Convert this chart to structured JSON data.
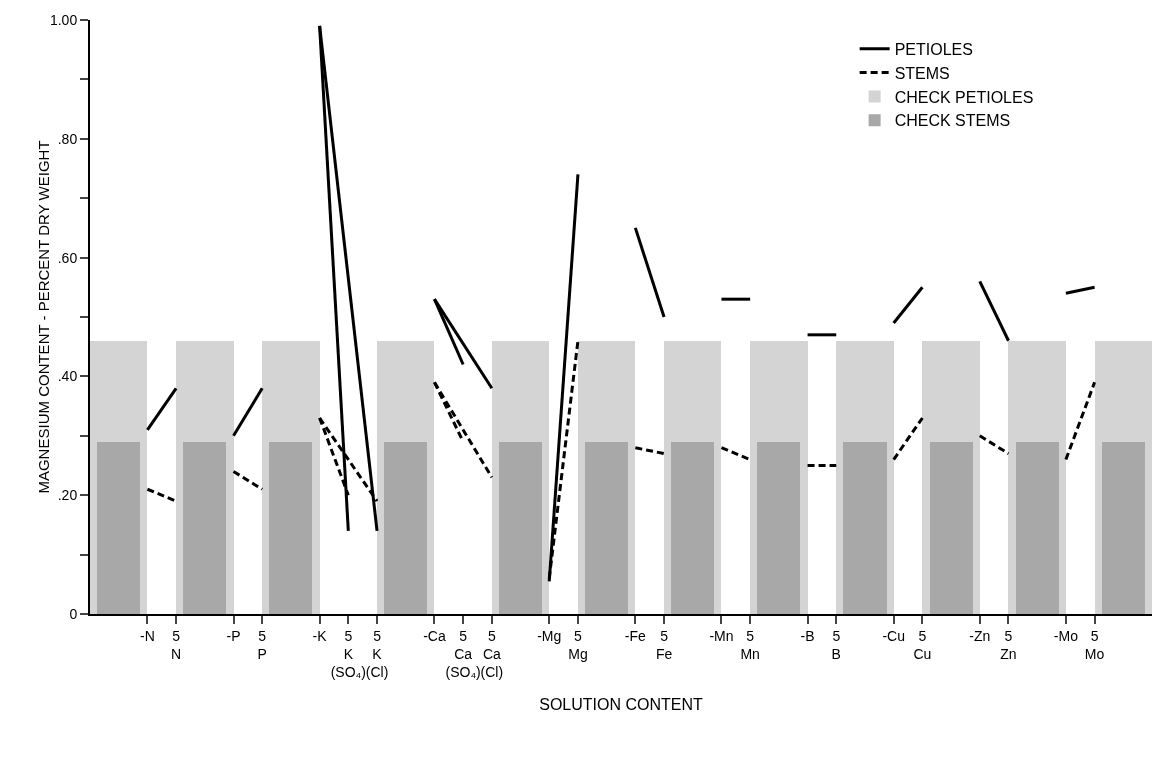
{
  "chart_data": {
    "type": "line",
    "xlabel": "SOLUTION CONTENT",
    "ylabel": "MAGNESIUM CONTENT - PERCENT DRY WEIGHT",
    "categories": [
      null,
      "-N",
      "5\nN",
      null,
      "-P",
      "5\nP",
      null,
      "-K",
      "5\nK\n(SO₄)",
      "5\nK\n(Cl)",
      null,
      "-Ca",
      "5\nCa\n(SO₄)",
      "5\nCa\n(Cl)",
      null,
      "-Mg",
      "5\nMg",
      null,
      "-Fe",
      "5\nFe",
      null,
      "-Mn",
      "5\nMn",
      null,
      "-B",
      "5\nB",
      null,
      "-Cu",
      "5\nCu",
      null,
      "-Zn",
      "5\nZn",
      null,
      "-Mo",
      "5\nMo",
      null
    ],
    "ylim": [
      0,
      1
    ],
    "yticks": [
      {
        "value": 0,
        "label": "0"
      },
      {
        "value": 0.1,
        "label": null
      },
      {
        "value": 0.2,
        "label": ".20"
      },
      {
        "value": 0.3,
        "label": null
      },
      {
        "value": 0.4,
        "label": ".40"
      },
      {
        "value": 0.5,
        "label": null
      },
      {
        "value": 0.6,
        "label": ".60"
      },
      {
        "value": 0.7,
        "label": null
      },
      {
        "value": 0.8,
        "label": ".80"
      },
      {
        "value": 0.9,
        "label": null
      },
      {
        "value": 1,
        "label": "1.00"
      }
    ],
    "legend": "top right",
    "marker": "none",
    "series": [
      {
        "name": "CHECK PETIOLES",
        "type": "bar",
        "color": "#d4d4d4",
        "values": [
          0.46,
          null,
          null,
          0.46,
          null,
          null,
          0.46,
          null,
          null,
          null,
          0.46,
          null,
          null,
          null,
          0.46,
          null,
          null,
          0.46,
          null,
          null,
          0.46,
          null,
          null,
          0.46,
          null,
          null,
          0.46,
          null,
          null,
          0.46,
          null,
          null,
          0.46,
          null,
          null,
          0.46
        ]
      },
      {
        "name": "CHECK STEMS",
        "type": "bar",
        "color": "#a8a8a8",
        "values": [
          0.29,
          null,
          null,
          0.29,
          null,
          null,
          0.29,
          null,
          null,
          null,
          0.29,
          null,
          null,
          null,
          0.29,
          null,
          null,
          0.29,
          null,
          null,
          0.29,
          null,
          null,
          0.29,
          null,
          null,
          0.29,
          null,
          null,
          0.29,
          null,
          null,
          0.29,
          null,
          null,
          0.29
        ]
      },
      {
        "name": "PETIOLES",
        "line_style": "solid",
        "color": "#000000",
        "values": [
          null,
          0.31,
          0.38,
          null,
          null,
          null,
          null,
          null,
          null,
          null,
          null,
          null,
          null,
          null,
          null,
          null,
          null,
          null,
          null,
          null,
          null,
          null,
          null,
          null,
          null,
          null,
          null,
          null,
          null,
          null,
          null,
          null,
          null,
          null,
          null,
          null
        ]
      },
      {
        "line_style": "solid",
        "color": "#000000",
        "values": [
          null,
          null,
          null,
          null,
          0.3,
          0.38,
          null,
          null,
          null,
          null,
          null,
          null,
          null,
          null,
          null,
          null,
          null,
          null,
          null,
          null,
          null,
          null,
          null,
          null,
          null,
          null,
          null,
          null,
          null,
          null,
          null,
          null,
          null,
          null,
          null,
          null
        ]
      },
      {
        "line_style": "solid",
        "color": "#000000",
        "values": [
          null,
          null,
          null,
          null,
          null,
          null,
          null,
          0.99,
          0.14,
          null,
          null,
          null,
          null,
          null,
          null,
          null,
          null,
          null,
          null,
          null,
          null,
          null,
          null,
          null,
          null,
          null,
          null,
          null,
          null,
          null,
          null,
          null,
          null,
          null,
          null,
          null
        ]
      },
      {
        "line_style": "solid",
        "color": "#000000",
        "values": [
          null,
          null,
          null,
          null,
          null,
          null,
          null,
          0.99,
          null,
          0.14,
          null,
          null,
          null,
          null,
          null,
          null,
          null,
          null,
          null,
          null,
          null,
          null,
          null,
          null,
          null,
          null,
          null,
          null,
          null,
          null,
          null,
          null,
          null,
          null,
          null,
          null
        ]
      },
      {
        "line_style": "solid",
        "color": "#000000",
        "values": [
          null,
          null,
          null,
          null,
          null,
          null,
          null,
          null,
          null,
          null,
          null,
          0.53,
          0.42,
          null,
          null,
          null,
          null,
          null,
          null,
          null,
          null,
          null,
          null,
          null,
          null,
          null,
          null,
          null,
          null,
          null,
          null,
          null,
          null,
          null,
          null,
          null
        ]
      },
      {
        "line_style": "solid",
        "color": "#000000",
        "values": [
          null,
          null,
          null,
          null,
          null,
          null,
          null,
          null,
          null,
          null,
          null,
          0.53,
          null,
          0.38,
          null,
          null,
          null,
          null,
          null,
          null,
          null,
          null,
          null,
          null,
          null,
          null,
          null,
          null,
          null,
          null,
          null,
          null,
          null,
          null,
          null,
          null
        ]
      },
      {
        "line_style": "solid",
        "color": "#000000",
        "values": [
          null,
          null,
          null,
          null,
          null,
          null,
          null,
          null,
          null,
          null,
          null,
          null,
          null,
          null,
          null,
          0.055,
          0.74,
          null,
          null,
          null,
          null,
          null,
          null,
          null,
          null,
          null,
          null,
          null,
          null,
          null,
          null,
          null,
          null,
          null,
          null,
          null
        ]
      },
      {
        "line_style": "solid",
        "color": "#000000",
        "values": [
          null,
          null,
          null,
          null,
          null,
          null,
          null,
          null,
          null,
          null,
          null,
          null,
          null,
          null,
          null,
          null,
          null,
          null,
          0.65,
          0.5,
          null,
          null,
          null,
          null,
          null,
          null,
          null,
          null,
          null,
          null,
          null,
          null,
          null,
          null,
          null,
          null
        ]
      },
      {
        "line_style": "solid",
        "color": "#000000",
        "values": [
          null,
          null,
          null,
          null,
          null,
          null,
          null,
          null,
          null,
          null,
          null,
          null,
          null,
          null,
          null,
          null,
          null,
          null,
          null,
          null,
          null,
          0.53,
          0.53,
          null,
          null,
          null,
          null,
          null,
          null,
          null,
          null,
          null,
          null,
          null,
          null,
          null
        ]
      },
      {
        "line_style": "solid",
        "color": "#000000",
        "values": [
          null,
          null,
          null,
          null,
          null,
          null,
          null,
          null,
          null,
          null,
          null,
          null,
          null,
          null,
          null,
          null,
          null,
          null,
          null,
          null,
          null,
          null,
          null,
          null,
          0.47,
          0.47,
          null,
          null,
          null,
          null,
          null,
          null,
          null,
          null,
          null,
          null
        ]
      },
      {
        "line_style": "solid",
        "color": "#000000",
        "values": [
          null,
          null,
          null,
          null,
          null,
          null,
          null,
          null,
          null,
          null,
          null,
          null,
          null,
          null,
          null,
          null,
          null,
          null,
          null,
          null,
          null,
          null,
          null,
          null,
          null,
          null,
          null,
          0.49,
          0.55,
          null,
          null,
          null,
          null,
          null,
          null,
          null
        ]
      },
      {
        "line_style": "solid",
        "color": "#000000",
        "values": [
          null,
          null,
          null,
          null,
          null,
          null,
          null,
          null,
          null,
          null,
          null,
          null,
          null,
          null,
          null,
          null,
          null,
          null,
          null,
          null,
          null,
          null,
          null,
          null,
          null,
          null,
          null,
          null,
          null,
          null,
          0.56,
          0.46,
          null,
          null,
          null,
          null
        ]
      },
      {
        "line_style": "solid",
        "color": "#000000",
        "values": [
          null,
          null,
          null,
          null,
          null,
          null,
          null,
          null,
          null,
          null,
          null,
          null,
          null,
          null,
          null,
          null,
          null,
          null,
          null,
          null,
          null,
          null,
          null,
          null,
          null,
          null,
          null,
          null,
          null,
          null,
          null,
          null,
          null,
          0.54,
          0.55,
          null
        ]
      },
      {
        "name": "STEMS",
        "line_style": "dashed",
        "color": "#000000",
        "values": [
          null,
          0.21,
          0.19,
          null,
          null,
          null,
          null,
          null,
          null,
          null,
          null,
          null,
          null,
          null,
          null,
          null,
          null,
          null,
          null,
          null,
          null,
          null,
          null,
          null,
          null,
          null,
          null,
          null,
          null,
          null,
          null,
          null,
          null,
          null,
          null,
          null
        ]
      },
      {
        "line_style": "dashed",
        "color": "#000000",
        "values": [
          null,
          null,
          null,
          null,
          0.24,
          0.21,
          null,
          null,
          null,
          null,
          null,
          null,
          null,
          null,
          null,
          null,
          null,
          null,
          null,
          null,
          null,
          null,
          null,
          null,
          null,
          null,
          null,
          null,
          null,
          null,
          null,
          null,
          null,
          null,
          null,
          null
        ]
      },
      {
        "line_style": "dashed",
        "color": "#000000",
        "values": [
          null,
          null,
          null,
          null,
          null,
          null,
          null,
          0.33,
          0.2,
          null,
          null,
          null,
          null,
          null,
          null,
          null,
          null,
          null,
          null,
          null,
          null,
          null,
          null,
          null,
          null,
          null,
          null,
          null,
          null,
          null,
          null,
          null,
          null,
          null,
          null,
          null
        ]
      },
      {
        "line_style": "dashed",
        "color": "#000000",
        "values": [
          null,
          null,
          null,
          null,
          null,
          null,
          null,
          0.33,
          null,
          0.19,
          null,
          null,
          null,
          null,
          null,
          null,
          null,
          null,
          null,
          null,
          null,
          null,
          null,
          null,
          null,
          null,
          null,
          null,
          null,
          null,
          null,
          null,
          null,
          null,
          null,
          null
        ]
      },
      {
        "line_style": "dashed",
        "color": "#000000",
        "values": [
          null,
          null,
          null,
          null,
          null,
          null,
          null,
          null,
          null,
          null,
          null,
          0.39,
          0.29,
          null,
          null,
          null,
          null,
          null,
          null,
          null,
          null,
          null,
          null,
          null,
          null,
          null,
          null,
          null,
          null,
          null,
          null,
          null,
          null,
          null,
          null,
          null
        ]
      },
      {
        "line_style": "dashed",
        "color": "#000000",
        "values": [
          null,
          null,
          null,
          null,
          null,
          null,
          null,
          null,
          null,
          null,
          null,
          0.39,
          null,
          0.23,
          null,
          null,
          null,
          null,
          null,
          null,
          null,
          null,
          null,
          null,
          null,
          null,
          null,
          null,
          null,
          null,
          null,
          null,
          null,
          null,
          null,
          null
        ]
      },
      {
        "line_style": "dashed",
        "color": "#000000",
        "values": [
          null,
          null,
          null,
          null,
          null,
          null,
          null,
          null,
          null,
          null,
          null,
          null,
          null,
          null,
          null,
          0.06,
          0.46,
          null,
          null,
          null,
          null,
          null,
          null,
          null,
          null,
          null,
          null,
          null,
          null,
          null,
          null,
          null,
          null,
          null,
          null,
          null
        ]
      },
      {
        "line_style": "dashed",
        "color": "#000000",
        "values": [
          null,
          null,
          null,
          null,
          null,
          null,
          null,
          null,
          null,
          null,
          null,
          null,
          null,
          null,
          null,
          null,
          null,
          null,
          0.28,
          0.27,
          null,
          null,
          null,
          null,
          null,
          null,
          null,
          null,
          null,
          null,
          null,
          null,
          null,
          null,
          null,
          null
        ]
      },
      {
        "line_style": "dashed",
        "color": "#000000",
        "values": [
          null,
          null,
          null,
          null,
          null,
          null,
          null,
          null,
          null,
          null,
          null,
          null,
          null,
          null,
          null,
          null,
          null,
          null,
          null,
          null,
          null,
          0.28,
          0.26,
          null,
          null,
          null,
          null,
          null,
          null,
          null,
          null,
          null,
          null,
          null,
          null,
          null
        ]
      },
      {
        "line_style": "dashed",
        "color": "#000000",
        "values": [
          null,
          null,
          null,
          null,
          null,
          null,
          null,
          null,
          null,
          null,
          null,
          null,
          null,
          null,
          null,
          null,
          null,
          null,
          null,
          null,
          null,
          null,
          null,
          null,
          0.25,
          0.25,
          null,
          null,
          null,
          null,
          null,
          null,
          null,
          null,
          null,
          null
        ]
      },
      {
        "line_style": "dashed",
        "color": "#000000",
        "values": [
          null,
          null,
          null,
          null,
          null,
          null,
          null,
          null,
          null,
          null,
          null,
          null,
          null,
          null,
          null,
          null,
          null,
          null,
          null,
          null,
          null,
          null,
          null,
          null,
          null,
          null,
          null,
          0.26,
          0.33,
          null,
          null,
          null,
          null,
          null,
          null,
          null
        ]
      },
      {
        "line_style": "dashed",
        "color": "#000000",
        "values": [
          null,
          null,
          null,
          null,
          null,
          null,
          null,
          null,
          null,
          null,
          null,
          null,
          null,
          null,
          null,
          null,
          null,
          null,
          null,
          null,
          null,
          null,
          null,
          null,
          null,
          null,
          null,
          null,
          null,
          null,
          0.3,
          0.27,
          null,
          null,
          null,
          null
        ]
      },
      {
        "line_style": "dashed",
        "color": "#000000",
        "values": [
          null,
          null,
          null,
          null,
          null,
          null,
          null,
          null,
          null,
          null,
          null,
          null,
          null,
          null,
          null,
          null,
          null,
          null,
          null,
          null,
          null,
          null,
          null,
          null,
          null,
          null,
          null,
          null,
          null,
          null,
          null,
          null,
          null,
          0.26,
          0.39,
          null
        ]
      }
    ]
  }
}
